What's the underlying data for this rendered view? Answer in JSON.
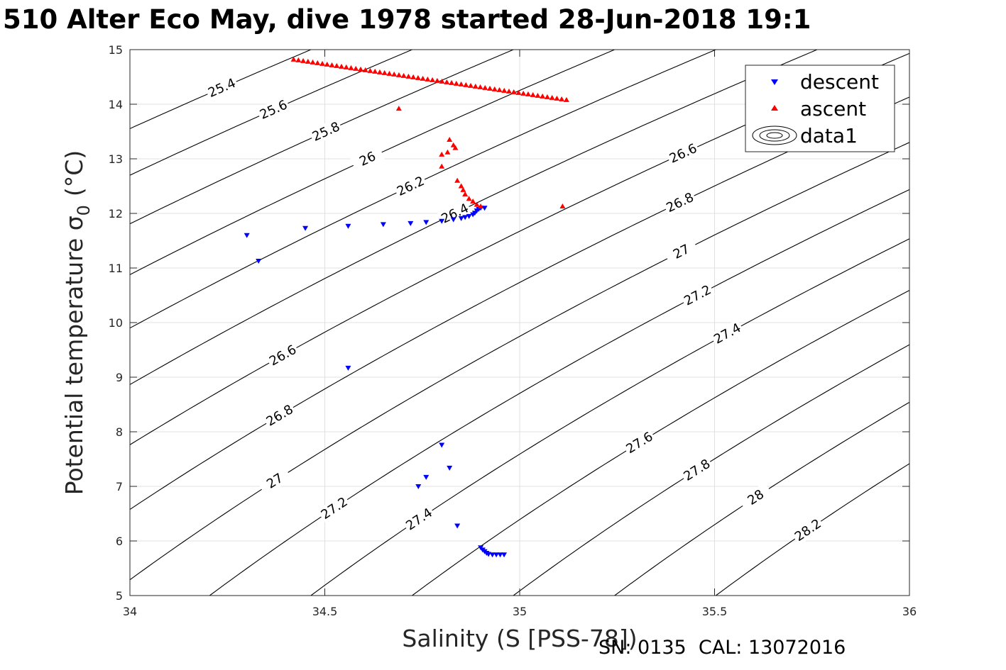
{
  "figure": {
    "title": "510 Alter Eco May, dive 1978 started 28-Jun-2018 19:1",
    "footer": "SN: 0135  CAL: 13072016"
  },
  "chart_data": {
    "type": "scatter",
    "xlabel": "Salinity (S [PSS-78])",
    "ylabel_main": "Potential temperature σ",
    "ylabel_sub": "0",
    "ylabel_unit": "(°C)",
    "xlim": [
      34,
      36
    ],
    "ylim": [
      5,
      15
    ],
    "xticks": [
      34,
      34.5,
      35,
      35.5,
      36
    ],
    "xtick_labels": [
      "34",
      "34.5",
      "35",
      "35.5",
      "36"
    ],
    "yticks": [
      5,
      6,
      7,
      8,
      9,
      10,
      11,
      12,
      13,
      14,
      15
    ],
    "ytick_labels": [
      "5",
      "6",
      "7",
      "8",
      "9",
      "10",
      "11",
      "12",
      "13",
      "14",
      "15"
    ],
    "grid": true,
    "legend_position": "top-right",
    "colors": {
      "descent": "#0000ff",
      "ascent": "#ff0000",
      "contour": "#000000",
      "grid": "#e0e0e0"
    },
    "series": [
      {
        "name": "descent",
        "marker": "triangle-down",
        "color": "#0000ff",
        "points": [
          [
            34.3,
            11.6
          ],
          [
            34.33,
            11.13
          ],
          [
            34.45,
            11.73
          ],
          [
            34.56,
            11.77
          ],
          [
            34.65,
            11.8
          ],
          [
            34.72,
            11.82
          ],
          [
            34.76,
            11.84
          ],
          [
            34.8,
            11.86
          ],
          [
            34.83,
            11.89
          ],
          [
            34.85,
            11.91
          ],
          [
            34.86,
            11.93
          ],
          [
            34.87,
            11.95
          ],
          [
            34.88,
            11.98
          ],
          [
            34.885,
            12.01
          ],
          [
            34.89,
            12.05
          ],
          [
            34.895,
            12.08
          ],
          [
            34.9,
            12.1
          ],
          [
            34.91,
            12.1
          ],
          [
            34.56,
            9.17
          ],
          [
            34.8,
            7.76
          ],
          [
            34.82,
            7.34
          ],
          [
            34.76,
            7.17
          ],
          [
            34.74,
            7.0
          ],
          [
            34.84,
            6.28
          ],
          [
            34.9,
            5.88
          ],
          [
            34.905,
            5.84
          ],
          [
            34.91,
            5.81
          ],
          [
            34.915,
            5.78
          ],
          [
            34.92,
            5.76
          ],
          [
            34.93,
            5.75
          ],
          [
            34.94,
            5.75
          ],
          [
            34.95,
            5.75
          ],
          [
            34.96,
            5.75
          ]
        ]
      },
      {
        "name": "ascent",
        "marker": "triangle-up",
        "color": "#ff0000",
        "points": [
          [
            34.69,
            13.92
          ],
          [
            34.82,
            13.35
          ],
          [
            34.83,
            13.25
          ],
          [
            34.835,
            13.2
          ],
          [
            34.815,
            13.12
          ],
          [
            34.8,
            13.08
          ],
          [
            34.8,
            12.86
          ],
          [
            34.84,
            12.6
          ],
          [
            34.85,
            12.5
          ],
          [
            34.855,
            12.43
          ],
          [
            34.86,
            12.35
          ],
          [
            34.87,
            12.27
          ],
          [
            34.88,
            12.22
          ],
          [
            34.89,
            12.16
          ],
          [
            34.9,
            12.13
          ],
          [
            35.11,
            12.13
          ]
        ],
        "surface_line": {
          "from": [
            34.42,
            14.82
          ],
          "to": [
            35.12,
            14.08
          ],
          "count": 58
        }
      }
    ],
    "contours": {
      "name": "data1",
      "levels": [
        25.4,
        25.6,
        25.8,
        26,
        26.2,
        26.4,
        26.6,
        26.8,
        27,
        27.2,
        27.4,
        27.6,
        27.8,
        28,
        28.2
      ],
      "level_labels": [
        "25.4",
        "25.6",
        "25.8",
        "26",
        "26.2",
        "26.4",
        "26.6",
        "26.8",
        "27",
        "27.2",
        "27.4",
        "27.6",
        "27.8",
        "28",
        "28.2"
      ]
    }
  }
}
